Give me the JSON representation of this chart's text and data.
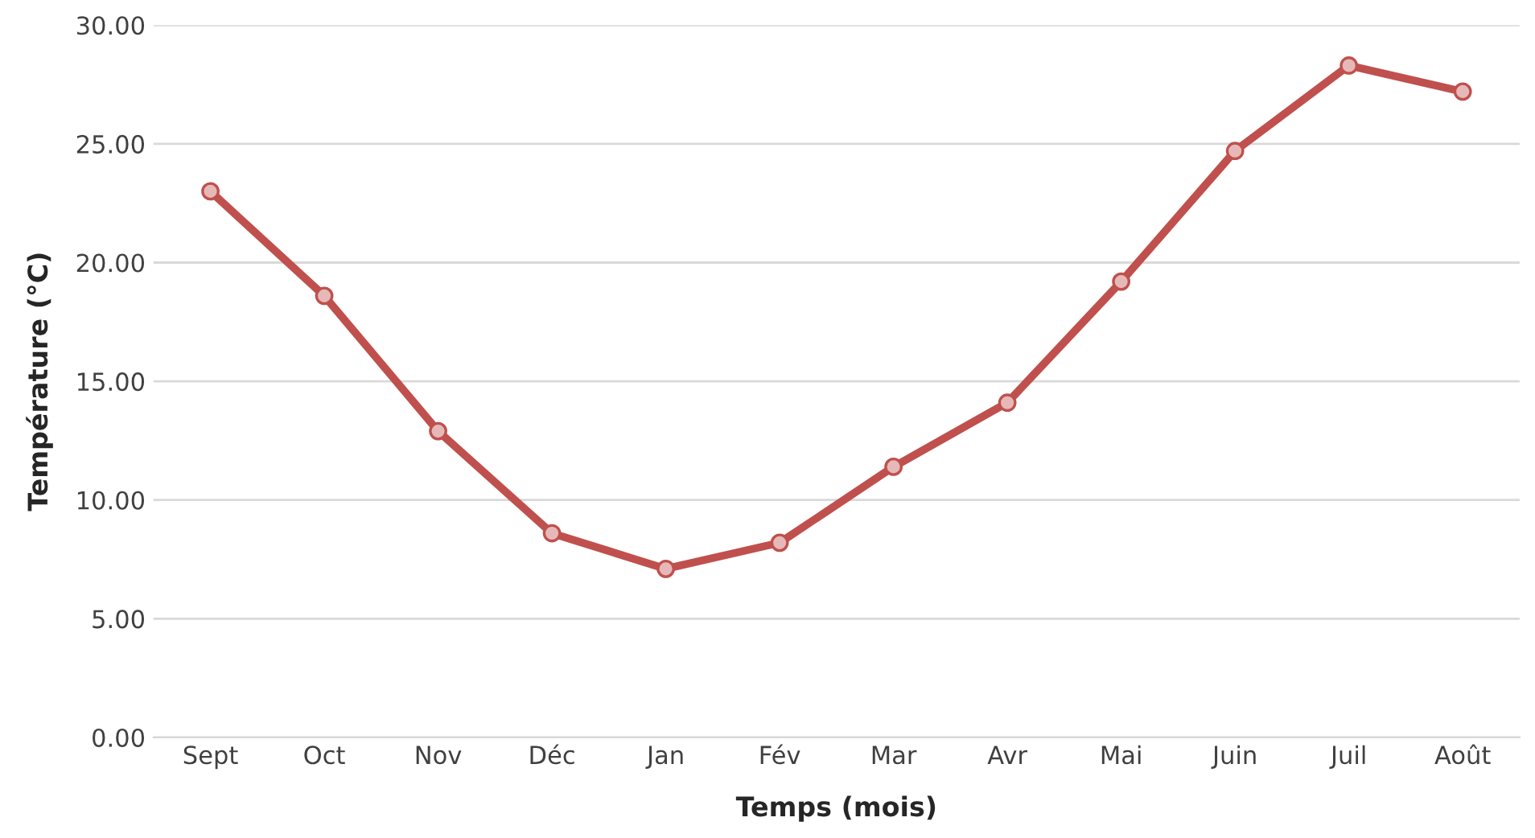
{
  "chart_data": {
    "type": "line",
    "xlabel": "Temps (mois)",
    "ylabel": "Température (°C)",
    "categories": [
      "Sept",
      "Oct",
      "Nov",
      "Déc",
      "Jan",
      "Fév",
      "Mar",
      "Avr",
      "Mai",
      "Juin",
      "Juil",
      "Août"
    ],
    "series": [
      {
        "color": "#c0504d",
        "values": [
          23.0,
          18.6,
          12.9,
          8.6,
          7.1,
          8.2,
          11.4,
          14.1,
          19.2,
          24.7,
          28.3,
          27.2
        ]
      }
    ],
    "ylim": [
      0,
      30
    ],
    "yticks": [
      {
        "value": 0,
        "label": "0.00"
      },
      {
        "value": 5,
        "label": "5.00"
      },
      {
        "value": 10,
        "label": "10.00"
      },
      {
        "value": 15,
        "label": "15.00"
      },
      {
        "value": 20,
        "label": "20.00"
      },
      {
        "value": 25,
        "label": "25.00"
      },
      {
        "value": 30,
        "label": "30.00"
      }
    ],
    "grid": "y",
    "legend": false,
    "marker": "circle",
    "line_style": "solid"
  }
}
